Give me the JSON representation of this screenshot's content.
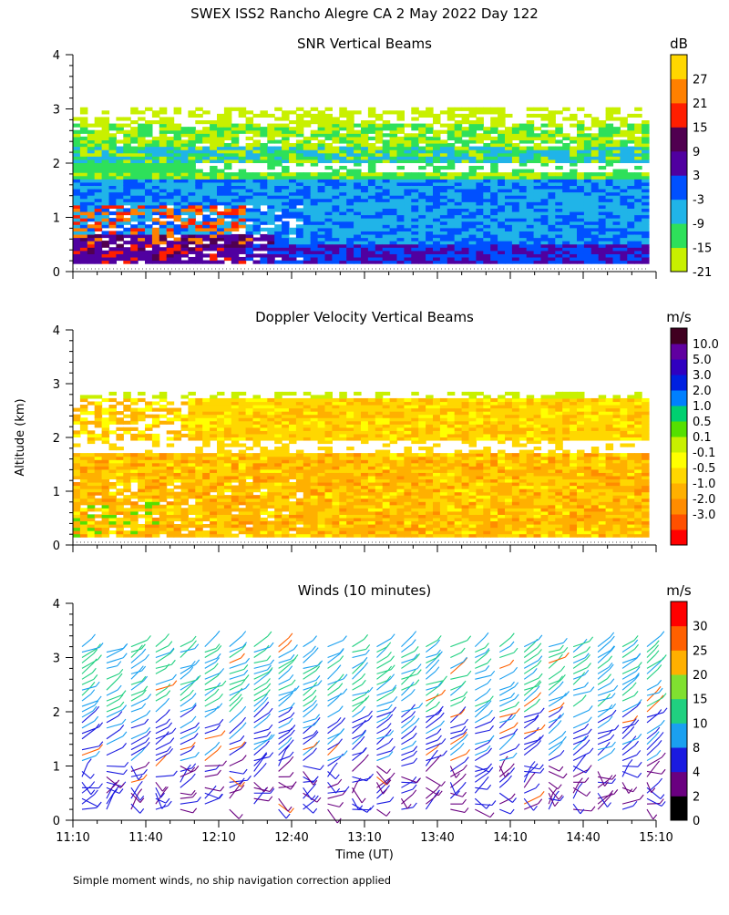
{
  "header": {
    "title": "SWEX ISS2 Rancho Alegre CA   2 May 2022 Day 122"
  },
  "footer": {
    "note": "Simple moment winds, no ship navigation correction applied"
  },
  "colors": {
    "snr_scale": [
      "#c8f000",
      "#2ee05a",
      "#20b4e8",
      "#0050ff",
      "#5000a0",
      "#500050",
      "#ff1e00",
      "#ff8000",
      "#ffd700"
    ],
    "vel_scale": [
      "#ff0000",
      "#ff5000",
      "#ff8c00",
      "#ffb000",
      "#ffd700",
      "#ffff00",
      "#c8f000",
      "#55e000",
      "#00d070",
      "#0080ff",
      "#0020e0",
      "#3000c0",
      "#6000a0",
      "#400020"
    ],
    "wind_scale": [
      "#000000",
      "#6a0080",
      "#1a1ae0",
      "#1aa0f0",
      "#20d080",
      "#80e030",
      "#ffb000",
      "#ff6000",
      "#ff0000"
    ]
  },
  "chart_data": [
    {
      "type": "heatmap",
      "title": "SNR Vertical Beams",
      "ylabel": "",
      "ylim": [
        0,
        4
      ],
      "yticks": [
        "0",
        "1",
        "2",
        "3",
        "4"
      ],
      "colorbar": {
        "unit": "dB",
        "labels": [
          "27",
          "21",
          "15",
          "9",
          "3",
          "-3",
          "-9",
          "-15",
          "-21"
        ]
      },
      "rows": [
        {
          "alt_min": 0.15,
          "alt_max": 0.6,
          "level": "9"
        },
        {
          "alt_min": 0.6,
          "alt_max": 1.2,
          "level": "-9"
        },
        {
          "alt_min": 1.2,
          "alt_max": 1.7,
          "level": "-3"
        },
        {
          "alt_min": 1.7,
          "alt_max": 2.0,
          "level": "-15"
        },
        {
          "alt_min": 2.0,
          "alt_max": 2.7,
          "level": "-9"
        },
        {
          "alt_min": 2.7,
          "alt_max": 3.0,
          "level": "-21"
        }
      ]
    },
    {
      "type": "heatmap",
      "title": "Doppler Velocity Vertical Beams",
      "ylabel": "Altitude (km)",
      "ylim": [
        0,
        4
      ],
      "yticks": [
        "0",
        "1",
        "2",
        "3",
        "4"
      ],
      "colorbar": {
        "unit": "m/s",
        "labels": [
          "10.0",
          "5.0",
          "3.0",
          "2.0",
          "1.0",
          "0.5",
          "0.1",
          "-0.1",
          "-0.5",
          "-1.0",
          "-2.0",
          "-3.0"
        ]
      },
      "rows": [
        {
          "alt_min": 0.15,
          "alt_max": 1.7,
          "level": "-0.5"
        },
        {
          "alt_min": 1.9,
          "alt_max": 2.7,
          "level": "-0.1"
        }
      ]
    },
    {
      "type": "scatter",
      "title": "Winds (10 minutes)",
      "ylabel": "",
      "xlabel": "Time (UT)",
      "ylim": [
        0,
        4
      ],
      "yticks": [
        "0",
        "1",
        "2",
        "3",
        "4"
      ],
      "xticks": [
        "11:10",
        "11:40",
        "12:10",
        "12:40",
        "13:10",
        "13:40",
        "14:10",
        "14:40",
        "15:10"
      ],
      "colorbar": {
        "unit": "m/s",
        "labels": [
          "30",
          "25",
          "20",
          "15",
          "10",
          "8",
          "4",
          "2",
          "0"
        ]
      },
      "profile_times": [
        "11:10",
        "11:20",
        "11:30",
        "11:40",
        "11:50",
        "12:00",
        "12:10",
        "12:20",
        "12:30",
        "12:40",
        "12:50",
        "13:00",
        "13:10",
        "13:20",
        "13:30",
        "13:40",
        "13:50",
        "14:00",
        "14:10",
        "14:20",
        "14:30",
        "14:40",
        "14:50",
        "15:00"
      ],
      "max_altitude_km": 3.3
    }
  ]
}
